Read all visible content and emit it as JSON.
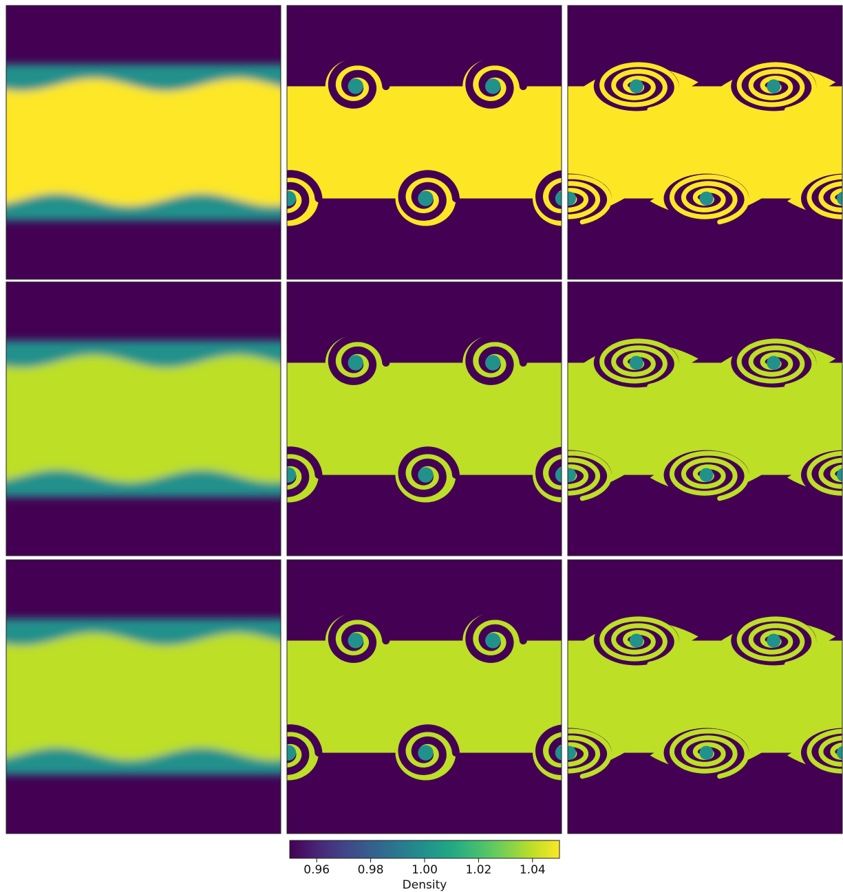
{
  "chart_data": {
    "type": "heatmap",
    "grid": {
      "rows": 3,
      "cols": 3
    },
    "field": "density",
    "colormap": "viridis",
    "colorbar": {
      "label": "Density",
      "range": [
        0.95,
        1.05
      ],
      "ticks": [
        0.96,
        0.98,
        1.0,
        1.02,
        1.04
      ],
      "tick_labels": [
        "0.96",
        "0.98",
        "1.00",
        "1.02",
        "1.04"
      ],
      "orientation": "horizontal",
      "placement": "bottom-center"
    },
    "background_density": 0.95,
    "upper_layer_density": {
      "row_1": 1.05,
      "row_2": 1.04,
      "row_3": 1.04
    },
    "panels": [
      {
        "row": 1,
        "col": 1,
        "stage": "early",
        "vortices_per_interface": 2
      },
      {
        "row": 1,
        "col": 2,
        "stage": "rolled",
        "vortices_per_interface": 2
      },
      {
        "row": 1,
        "col": 3,
        "stage": "wound",
        "vortices_per_interface": 2
      },
      {
        "row": 2,
        "col": 1,
        "stage": "early",
        "vortices_per_interface": 2
      },
      {
        "row": 2,
        "col": 2,
        "stage": "rolled",
        "vortices_per_interface": 2
      },
      {
        "row": 2,
        "col": 3,
        "stage": "wound",
        "vortices_per_interface": 2
      },
      {
        "row": 3,
        "col": 1,
        "stage": "early",
        "vortices_per_interface": 2
      },
      {
        "row": 3,
        "col": 2,
        "stage": "rolled",
        "vortices_per_interface": 2
      },
      {
        "row": 3,
        "col": 3,
        "stage": "wound",
        "vortices_per_interface": 2
      }
    ]
  }
}
